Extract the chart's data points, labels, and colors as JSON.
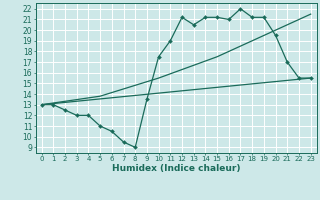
{
  "xlabel": "Humidex (Indice chaleur)",
  "ylabel": "",
  "x_ticks": [
    0,
    1,
    2,
    3,
    4,
    5,
    6,
    7,
    8,
    9,
    10,
    11,
    12,
    13,
    14,
    15,
    16,
    17,
    18,
    19,
    20,
    21,
    22,
    23
  ],
  "ylim": [
    8.5,
    22.5
  ],
  "xlim": [
    -0.5,
    23.5
  ],
  "yticks": [
    9,
    10,
    11,
    12,
    13,
    14,
    15,
    16,
    17,
    18,
    19,
    20,
    21,
    22
  ],
  "bg_color": "#cde8e8",
  "grid_color": "#ffffff",
  "line_color": "#1a6b5a",
  "line1_x": [
    0,
    1,
    2,
    3,
    4,
    5,
    6,
    7,
    8,
    9,
    10,
    11,
    12,
    13,
    14,
    15,
    16,
    17,
    18,
    19,
    20,
    21,
    22,
    23
  ],
  "line1_y": [
    13.0,
    13.0,
    12.5,
    12.0,
    12.0,
    11.0,
    10.5,
    9.5,
    9.0,
    13.5,
    17.5,
    19.0,
    21.2,
    20.5,
    21.2,
    21.2,
    21.0,
    22.0,
    21.2,
    21.2,
    19.5,
    17.0,
    15.5,
    15.5
  ],
  "line2_x": [
    0,
    5,
    10,
    15,
    17,
    19,
    21,
    23
  ],
  "line2_y": [
    13.0,
    13.8,
    15.5,
    17.5,
    18.5,
    19.5,
    20.5,
    21.5
  ],
  "line3_x": [
    0,
    23
  ],
  "line3_y": [
    13.0,
    15.5
  ]
}
